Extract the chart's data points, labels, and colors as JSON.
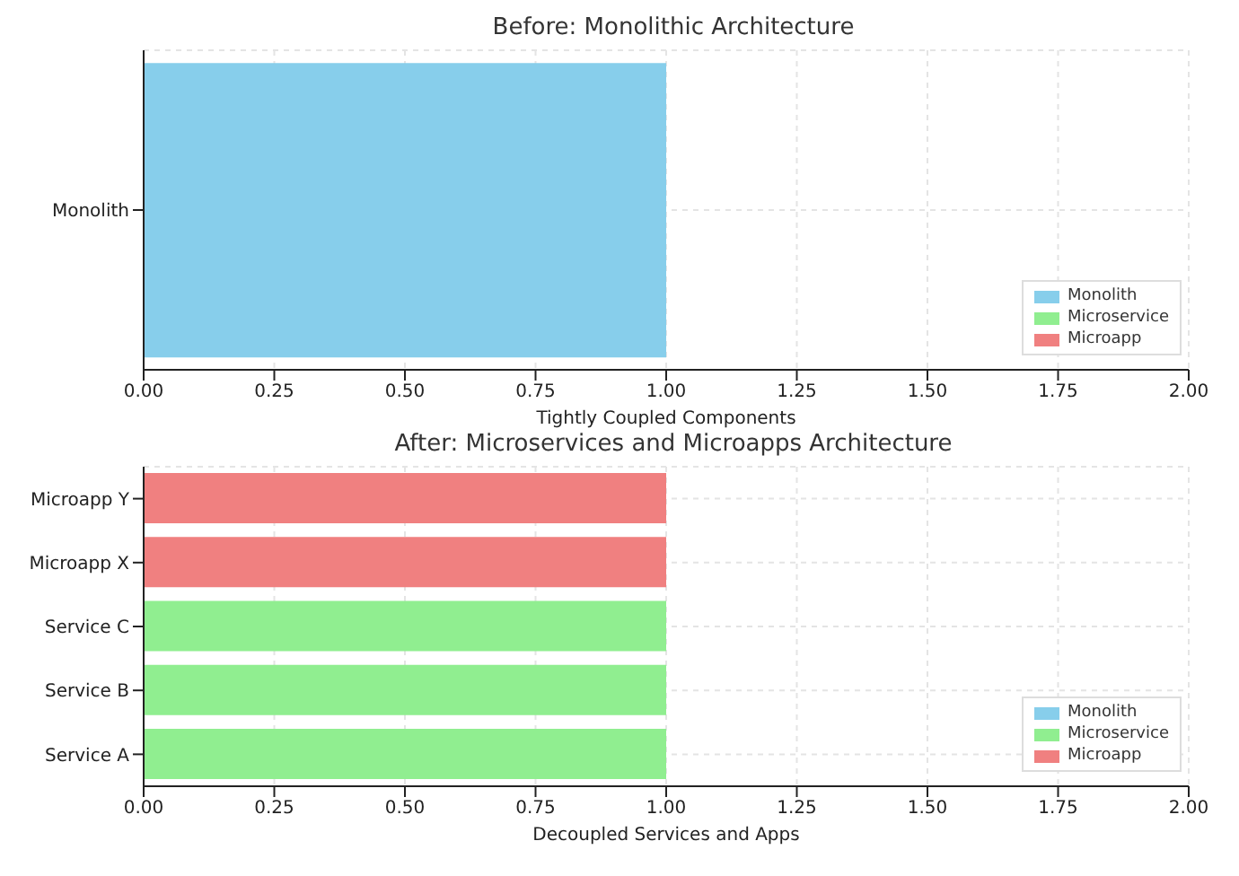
{
  "chart_data": [
    {
      "type": "bar",
      "orientation": "horizontal",
      "stacked": true,
      "title": "Before: Monolithic Architecture",
      "xlabel": "Tightly Coupled Components",
      "categories": [
        "Monolith"
      ],
      "series": [
        {
          "name": "Monolith",
          "color": "#87ceeb",
          "values": [
            1
          ]
        },
        {
          "name": "Microservice",
          "color": "#90ee90",
          "values": [
            null
          ]
        },
        {
          "name": "Microapp",
          "color": "#f08080",
          "values": [
            null
          ]
        }
      ],
      "xlim": [
        0,
        2
      ],
      "xticks": [
        {
          "value": 0,
          "label": "0.00"
        },
        {
          "value": 0.25,
          "label": "0.25"
        },
        {
          "value": 0.5,
          "label": "0.50"
        },
        {
          "value": 0.75,
          "label": "0.75"
        },
        {
          "value": 1,
          "label": "1.00"
        },
        {
          "value": 1.25,
          "label": "1.25"
        },
        {
          "value": 1.5,
          "label": "1.50"
        },
        {
          "value": 1.75,
          "label": "1.75"
        },
        {
          "value": 2,
          "label": "2.00"
        }
      ],
      "grid": true,
      "legend": "bottom right"
    },
    {
      "type": "bar",
      "orientation": "horizontal",
      "stacked": true,
      "title": "After: Microservices and Microapps Architecture",
      "xlabel": "Decoupled Services and Apps",
      "categories": [
        "Microapp Y",
        "Microapp X",
        "Service C",
        "Service B",
        "Service A"
      ],
      "series": [
        {
          "name": "Monolith",
          "color": "#87ceeb",
          "values": [
            null,
            null,
            null,
            null,
            null
          ]
        },
        {
          "name": "Microservice",
          "color": "#90ee90",
          "values": [
            null,
            null,
            1,
            1,
            1
          ]
        },
        {
          "name": "Microapp",
          "color": "#f08080",
          "values": [
            1,
            1,
            null,
            null,
            null
          ]
        }
      ],
      "xlim": [
        0,
        2
      ],
      "xticks": [
        {
          "value": 0,
          "label": "0.00"
        },
        {
          "value": 0.25,
          "label": "0.25"
        },
        {
          "value": 0.5,
          "label": "0.50"
        },
        {
          "value": 0.75,
          "label": "0.75"
        },
        {
          "value": 1,
          "label": "1.00"
        },
        {
          "value": 1.25,
          "label": "1.25"
        },
        {
          "value": 1.5,
          "label": "1.50"
        },
        {
          "value": 1.75,
          "label": "1.75"
        },
        {
          "value": 2,
          "label": "2.00"
        }
      ],
      "grid": true,
      "legend": "bottom right"
    }
  ]
}
